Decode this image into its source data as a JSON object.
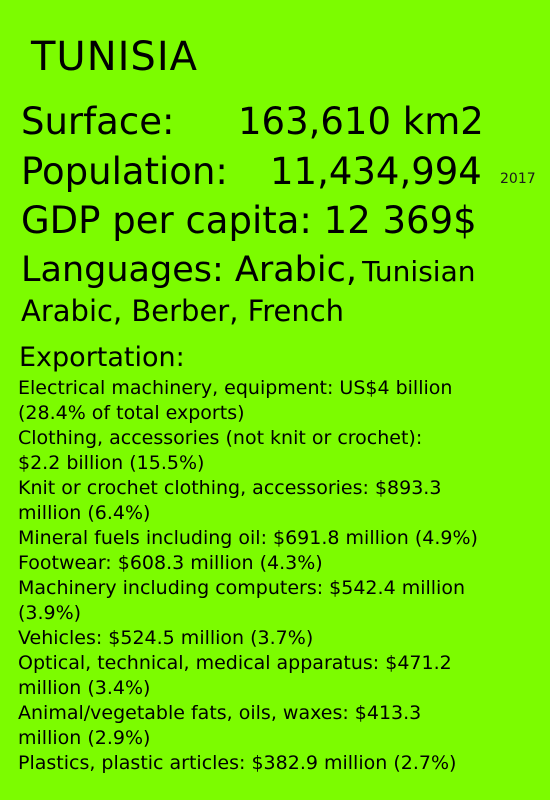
{
  "country": "TUNISIA",
  "surface": {
    "label": "Surface:",
    "value": "163,610 km2"
  },
  "population": {
    "label": "Population:",
    "value": "11,434,994",
    "year": "2017"
  },
  "gdp": "GDP per capita: 12 369$",
  "languages": {
    "label": "Languages: Arabic,",
    "line1_rest": "Tunisian",
    "line2": "Arabic, Berber, French"
  },
  "exportation": {
    "heading": "Exportation:",
    "items": [
      "Electrical machinery, equipment: US$4 billion\n(28.4% of total exports)",
      "Clothing, accessories (not knit or crochet):\n$2.2 billion (15.5%)",
      "Knit or crochet clothing, accessories: $893.3\nmillion (6.4%)",
      "Mineral fuels including oil: $691.8 million (4.9%)",
      "Footwear: $608.3 million (4.3%)",
      "Machinery including computers: $542.4 million\n(3.9%)",
      "Vehicles: $524.5 million (3.7%)",
      "Optical, technical, medical apparatus: $471.2\nmillion (3.4%)",
      "Animal/vegetable fats, oils, waxes: $413.3\nmillion (2.9%)",
      "Plastics, plastic articles: $382.9 million (2.7%)"
    ]
  }
}
